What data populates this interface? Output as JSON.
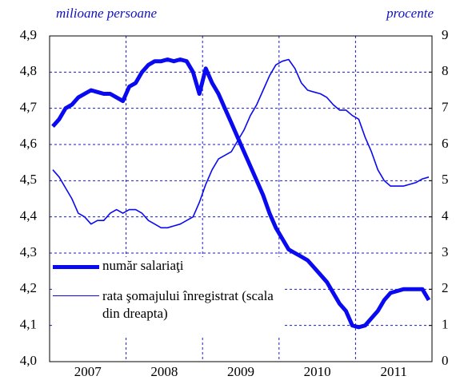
{
  "chart_data": {
    "type": "line",
    "y_label": "milioane persoane",
    "y2_label": "procente",
    "categories": [
      null,
      null,
      null,
      null,
      null,
      "2007",
      null,
      null,
      null,
      null,
      null,
      null,
      null,
      null,
      null,
      null,
      null,
      "2008",
      null,
      null,
      null,
      null,
      null,
      null,
      null,
      null,
      null,
      null,
      null,
      "2009",
      null,
      null,
      null,
      null,
      null,
      null,
      null,
      null,
      null,
      null,
      null,
      "2010",
      null,
      null,
      null,
      null,
      null,
      null,
      null,
      null,
      null,
      null,
      null,
      "2011",
      null,
      null,
      null,
      null,
      null,
      null
    ],
    "series": [
      {
        "name": "număr salariaţi",
        "color": "#0a0af0",
        "width": 5,
        "values": [
          4.65,
          4.67,
          4.7,
          4.71,
          4.73,
          4.74,
          4.75,
          4.745,
          4.74,
          4.74,
          4.73,
          4.72,
          4.76,
          4.77,
          4.8,
          4.82,
          4.83,
          4.83,
          4.835,
          4.83,
          4.835,
          4.83,
          4.8,
          4.74,
          4.81,
          4.77,
          4.74,
          4.7,
          4.66,
          4.62,
          4.58,
          4.54,
          4.5,
          4.46,
          4.41,
          4.37,
          4.34,
          4.31,
          4.3,
          4.29,
          4.28,
          4.26,
          4.24,
          4.22,
          4.19,
          4.16,
          4.14,
          4.1,
          4.095,
          4.1,
          4.12,
          4.14,
          4.17,
          4.19,
          4.195,
          4.2,
          4.2,
          4.2,
          4.2,
          4.17
        ]
      },
      {
        "name": "rata şomajului înregistrat (scala din dreapta)",
        "color": "#0a0af0",
        "width": 1.6,
        "axis": "y2",
        "values": [
          5.3,
          5.1,
          4.8,
          4.5,
          4.1,
          4.0,
          3.8,
          3.9,
          3.9,
          4.1,
          4.2,
          4.1,
          4.2,
          4.2,
          4.1,
          3.9,
          3.8,
          3.7,
          3.7,
          3.75,
          3.8,
          3.9,
          4.0,
          4.4,
          4.9,
          5.3,
          5.6,
          5.7,
          5.8,
          6.1,
          6.4,
          6.8,
          7.1,
          7.5,
          7.9,
          8.2,
          8.3,
          8.35,
          8.1,
          7.7,
          7.5,
          7.45,
          7.4,
          7.3,
          7.1,
          6.95,
          6.95,
          6.8,
          6.7,
          6.2,
          5.8,
          5.3,
          5.0,
          4.85,
          4.85,
          4.85,
          4.9,
          4.95,
          5.05,
          5.1
        ]
      }
    ],
    "ylim": [
      4.0,
      4.9
    ],
    "yticks": [
      {
        "value": 4.0,
        "label": "4,0"
      },
      {
        "value": 4.1,
        "label": "4,1"
      },
      {
        "value": 4.2,
        "label": "4,2"
      },
      {
        "value": 4.3,
        "label": "4,3"
      },
      {
        "value": 4.4,
        "label": "4,4"
      },
      {
        "value": 4.5,
        "label": "4,5"
      },
      {
        "value": 4.6,
        "label": "4,6"
      },
      {
        "value": 4.7,
        "label": "4,7"
      },
      {
        "value": 4.8,
        "label": "4,8"
      },
      {
        "value": 4.9,
        "label": "4,9"
      }
    ],
    "y2lim": [
      0,
      9
    ],
    "y2ticks": [
      0,
      1,
      2,
      3,
      4,
      5,
      6,
      7,
      8,
      9
    ],
    "grid": true
  }
}
